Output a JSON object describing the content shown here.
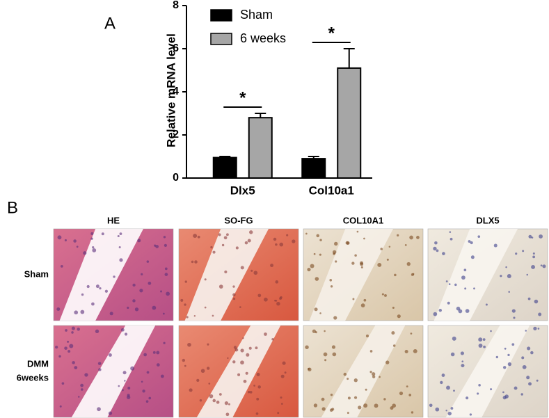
{
  "panel_labels": [
    "A",
    "B"
  ],
  "chart_data": {
    "type": "bar",
    "y_label": "Relative mRNA level",
    "categories": [
      "Dlx5",
      "Col10a1"
    ],
    "series": [
      {
        "name": "Sham",
        "color": "#000000",
        "values": [
          0.95,
          0.9
        ],
        "errors": [
          0.05,
          0.1
        ]
      },
      {
        "name": "6 weeks",
        "color": "#a6a6a6",
        "values": [
          2.8,
          5.1
        ],
        "errors": [
          0.2,
          0.9
        ]
      }
    ],
    "significance": [
      "*",
      "*"
    ],
    "ylim": [
      0,
      8
    ],
    "yticks": [
      0,
      2,
      4,
      6,
      8
    ],
    "legend": "top-left"
  },
  "histology": {
    "columns": [
      "HE",
      "SO-FG",
      "COL10A1",
      "DLX5"
    ],
    "rows": [
      [
        "Sham"
      ],
      [
        "DMM",
        "6weeks"
      ]
    ]
  }
}
